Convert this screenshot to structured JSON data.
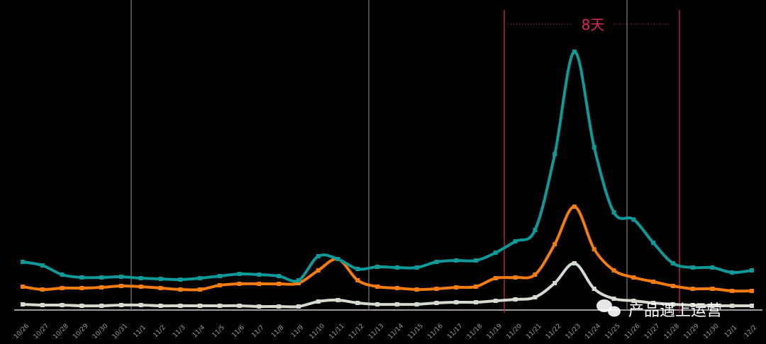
{
  "chart_data": {
    "type": "line",
    "categories": [
      "10/26",
      "10/27",
      "10/28",
      "10/29",
      "10/30",
      "10/31",
      "11/1",
      "11/2",
      "11/3",
      "11/4",
      "11/5",
      "11/6",
      "11/7",
      "11/8",
      "11/9",
      "11/10",
      "11/11",
      "11/12",
      "11/13",
      "11/14",
      "11/15",
      "11/16",
      "11/17",
      "11/18",
      "11/19",
      "11/20",
      "11/21",
      "11/22",
      "11/23",
      "11/24",
      "11/25",
      "11/26",
      "11/27",
      "11/28",
      "11/29",
      "11/30",
      "12/1",
      "12/2"
    ],
    "series": [
      {
        "color": "#0e9a9a",
        "values": [
          68,
          63,
          50,
          46,
          46,
          47,
          45,
          44,
          43,
          45,
          48,
          51,
          50,
          48,
          42,
          76,
          72,
          58,
          61,
          60,
          60,
          68,
          70,
          70,
          81,
          97,
          113,
          220,
          365,
          230,
          138,
          128,
          95,
          66,
          60,
          60,
          53,
          56
        ]
      },
      {
        "color": "#f57c0e",
        "values": [
          33,
          29,
          31,
          31,
          32,
          34,
          33,
          31,
          29,
          29,
          35,
          37,
          37,
          37,
          38,
          56,
          72,
          42,
          33,
          31,
          29,
          30,
          32,
          33,
          45,
          46,
          50,
          93,
          146,
          86,
          56,
          46,
          40,
          34,
          30,
          30,
          27,
          27
        ]
      },
      {
        "color": "#d4dbcf",
        "values": [
          8,
          7,
          7,
          6,
          6,
          7,
          7,
          6,
          6,
          6,
          6,
          6,
          5,
          5,
          5,
          12,
          14,
          10,
          8,
          8,
          8,
          10,
          11,
          11,
          13,
          15,
          18,
          38,
          66,
          30,
          16,
          13,
          10,
          8,
          7,
          6,
          6,
          6
        ]
      }
    ],
    "ylim": [
      0,
      420
    ],
    "annotation": "8天",
    "watermark": "产品遇上运营"
  }
}
